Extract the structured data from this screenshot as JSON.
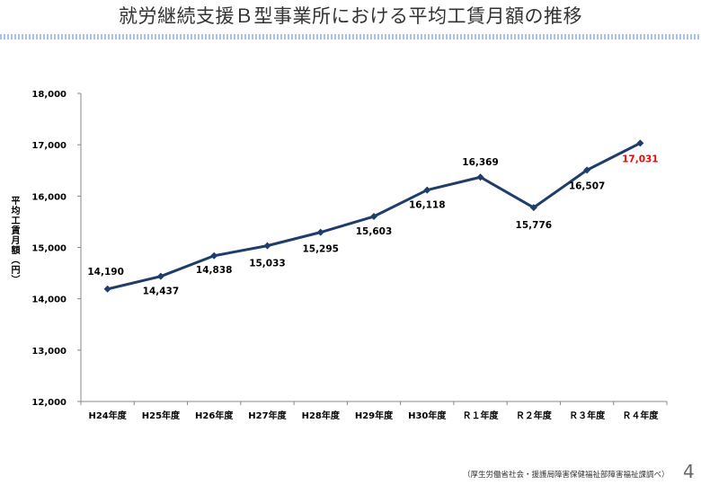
{
  "title": "就労継続支援Ｂ型事業所における平均工賃月額の推移",
  "source": "（厚生労働省社会・援護局障害保健福祉部障害福祉課調べ）",
  "page_number": "4",
  "colors": {
    "line": "#1f3d6b",
    "highlight": "#ff0000",
    "grid": "#c8c8c8"
  },
  "chart_data": {
    "type": "line",
    "ylabel": "平均工賃月額（円）",
    "ylim": [
      12000,
      18000
    ],
    "yticks": [
      "12,000",
      "13,000",
      "14,000",
      "15,000",
      "16,000",
      "17,000",
      "18,000"
    ],
    "ytick_values": [
      12000,
      13000,
      14000,
      15000,
      16000,
      17000,
      18000
    ],
    "categories": [
      "H24年度",
      "H25年度",
      "H26年度",
      "H27年度",
      "H28年度",
      "H29年度",
      "H30年度",
      "Ｒ１年度",
      "Ｒ２年度",
      "Ｒ３年度",
      "Ｒ４年度"
    ],
    "series": [
      {
        "values": [
          14190,
          14437,
          14838,
          15033,
          15295,
          15603,
          16118,
          16369,
          15776,
          16507,
          17031
        ],
        "labels": [
          "14,190",
          "14,437",
          "14,838",
          "15,033",
          "15,295",
          "15,603",
          "16,118",
          "16,369",
          "15,776",
          "16,507",
          "17,031"
        ]
      }
    ],
    "highlight_index": 10,
    "grid": false
  }
}
